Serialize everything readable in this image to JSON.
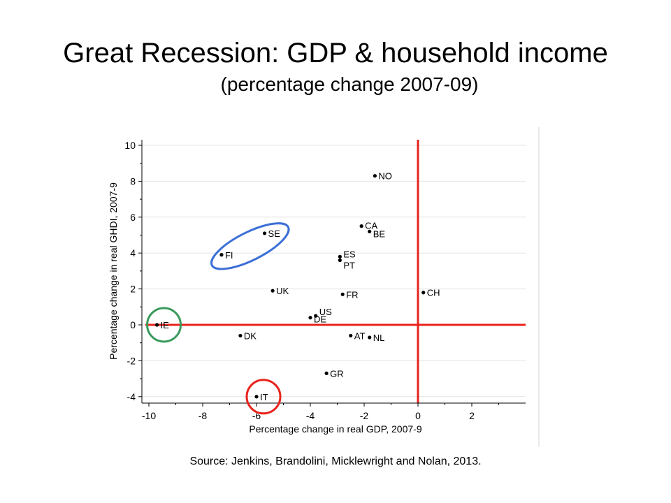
{
  "slide": {
    "title": "Great Recession: GDP & household income",
    "subtitle": "(percentage change 2007-09)",
    "source": "Source: Jenkins, Brandolini, Micklewright and Nolan, 2013."
  },
  "chart_data": {
    "type": "scatter",
    "xlabel": "Percentage change in real GDP, 2007-9",
    "ylabel": "Percentage change in real GHDI, 2007-9",
    "xlim": [
      -10.5,
      4
    ],
    "ylim": [
      -4.3,
      10.3
    ],
    "xticks": [
      -10,
      -8,
      -6,
      -4,
      -2,
      0,
      2
    ],
    "yticks": [
      -4,
      -2,
      0,
      2,
      4,
      6,
      8,
      10
    ],
    "grid": true,
    "reference_lines": {
      "x": 0,
      "y": 0,
      "color": "#e8231c"
    },
    "points": [
      {
        "label": "NO",
        "x": -1.6,
        "y": 8.3
      },
      {
        "label": "CA",
        "x": -2.1,
        "y": 5.5
      },
      {
        "label": "BE",
        "x": -1.8,
        "y": 5.2
      },
      {
        "label": "SE",
        "x": -5.7,
        "y": 5.1
      },
      {
        "label": "FI",
        "x": -7.3,
        "y": 3.9
      },
      {
        "label": "ES",
        "x": -2.9,
        "y": 3.8
      },
      {
        "label": "PT",
        "x": -2.9,
        "y": 3.6
      },
      {
        "label": "UK",
        "x": -5.4,
        "y": 1.9
      },
      {
        "label": "FR",
        "x": -2.8,
        "y": 1.7
      },
      {
        "label": "CH",
        "x": 0.2,
        "y": 1.8
      },
      {
        "label": "US",
        "x": -3.8,
        "y": 0.5
      },
      {
        "label": "DE",
        "x": -4.0,
        "y": 0.4
      },
      {
        "label": "IE",
        "x": -9.7,
        "y": 0.0
      },
      {
        "label": "DK",
        "x": -6.6,
        "y": -0.6
      },
      {
        "label": "AT",
        "x": -2.5,
        "y": -0.6
      },
      {
        "label": "NL",
        "x": -1.8,
        "y": -0.7
      },
      {
        "label": "GR",
        "x": -3.4,
        "y": -2.7
      },
      {
        "label": "IT",
        "x": -6.0,
        "y": -4.0
      }
    ],
    "highlights": [
      {
        "shape": "ellipse",
        "color": "#3c6fd8",
        "around": [
          "SE",
          "FI"
        ]
      },
      {
        "shape": "circle",
        "color": "#3a9a5c",
        "around": [
          "IE"
        ]
      },
      {
        "shape": "circle",
        "color": "#e8231c",
        "around": [
          "IT"
        ]
      }
    ]
  }
}
